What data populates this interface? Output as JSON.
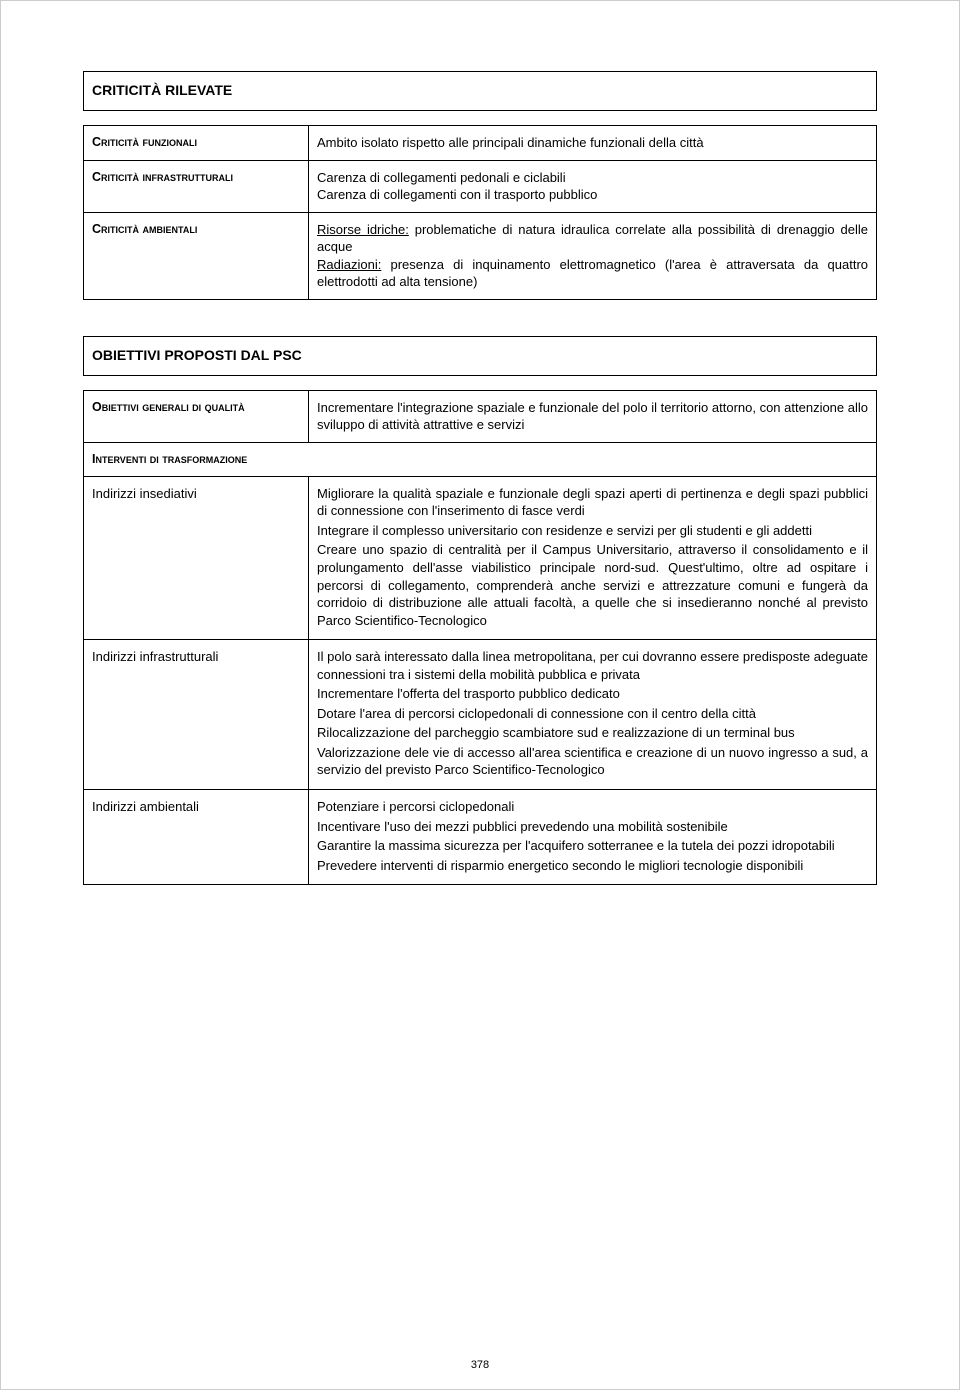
{
  "colors": {
    "text": "#000000",
    "page_bg": "#ffffff",
    "border": "#000000",
    "page_border": "#cccccc"
  },
  "typography": {
    "body_font": "Arial, Helvetica, sans-serif",
    "body_size_pt": 10,
    "title_size_pt": 11,
    "title_weight": "bold",
    "label_smallcaps": true
  },
  "section1": {
    "heading": "CRITICITÀ RILEVATE",
    "rows": [
      {
        "label": "Criticità funzionali",
        "content_html": "Ambito isolato rispetto alle principali dinamiche funzionali della città"
      },
      {
        "label": "Criticità infrastrutturali",
        "content_html": "Carenza di collegamenti pedonali e ciclabili<br>Carenza di collegamenti con il trasporto pubblico"
      },
      {
        "label": "Criticità ambientali",
        "content_html": "<span class=\"underline\">Risorse idriche:</span> problematiche di natura idraulica correlate alla possibilità di drenaggio delle acque<br><span class=\"underline\">Radiazioni:</span> presenza di inquinamento elettromagnetico (l'area è attraversata da quattro elettrodotti ad alta tensione)"
      }
    ]
  },
  "section2": {
    "heading": "OBIETTIVI PROPOSTI DAL PSC",
    "rows": [
      {
        "label": "Obiettivi generali di qualità",
        "label_smallcaps": true,
        "content_html": "Incrementare l'integrazione spaziale e funzionale del polo il territorio attorno, con attenzione allo sviluppo di attività attrattive e servizi"
      },
      {
        "full_row_label": "Interventi di trasformazione",
        "label_smallcaps": true
      },
      {
        "label": "Indirizzi insediativi",
        "label_smallcaps": false,
        "content_html": "<p class=\"para\">Migliorare la qualità spaziale e funzionale degli spazi aperti di pertinenza e degli spazi pubblici di connessione con l'inserimento di fasce verdi</p><p class=\"para\">Integrare il complesso universitario con residenze e servizi per gli studenti e gli addetti</p><p class=\"para\">Creare uno spazio di centralità per il Campus Universitario, attraverso il consolidamento e il prolungamento dell'asse viabilistico principale nord-sud. Quest'ultimo, oltre ad ospitare i percorsi di collegamento, comprenderà anche servizi e attrezzature comuni e fungerà da corridoio di distribuzione alle attuali facoltà, a quelle che si insedieranno nonché al previsto Parco Scientifico-Tecnologico</p>"
      },
      {
        "label": "Indirizzi infrastrutturali",
        "label_smallcaps": false,
        "content_html": "<p class=\"para\">Il polo sarà interessato dalla linea metropolitana, per cui dovranno essere predisposte adeguate connessioni tra i sistemi della mobilità pubblica e privata</p><p class=\"para\">Incrementare l'offerta del trasporto pubblico dedicato</p><p class=\"para\">Dotare l'area di percorsi ciclopedonali di connessione con il centro della città</p><p class=\"para\">Rilocalizzazione del parcheggio scambiatore sud e realizzazione di un terminal bus</p><p class=\"para\">Valorizzazione dele vie di accesso all'area scientifica e creazione di un nuovo ingresso a sud, a servizio del previsto Parco Scientifico-Tecnologico</p>"
      },
      {
        "label": "Indirizzi ambientali",
        "label_smallcaps": false,
        "content_html": "<p class=\"para\">Potenziare i percorsi ciclopedonali</p><p class=\"para\">Incentivare l'uso dei mezzi pubblici prevedendo una mobilità sostenibile</p><p class=\"para\">Garantire la massima sicurezza per l'acquifero sotterranee e la tutela dei pozzi idropotabili</p><p class=\"para\">Prevedere interventi di risparmio energetico secondo le migliori tecnologie disponibili</p>"
      }
    ]
  },
  "page_number": "378"
}
